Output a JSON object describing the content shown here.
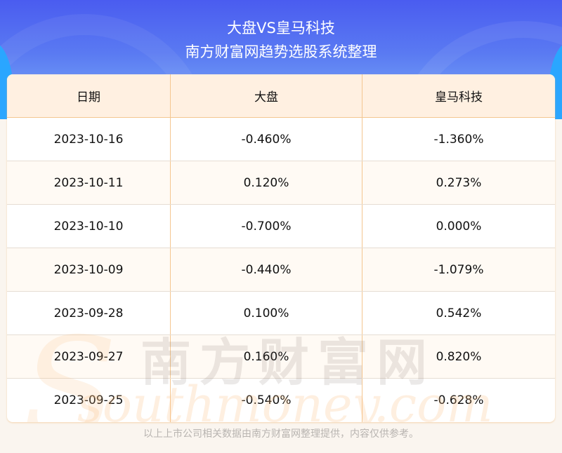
{
  "header": {
    "title": "大盘VS皇马科技",
    "subtitle": "南方财富网趋势选股系统整理"
  },
  "watermark": {
    "cn": "南方财富网",
    "en": "southmoney.com"
  },
  "colors": {
    "header_bg": "#4a5cf0",
    "table_head_bg": "#fff0e1",
    "divider": "#f4c690"
  },
  "table": {
    "columns": [
      "日期",
      "大盘",
      "皇马科技"
    ],
    "rows": [
      [
        "2023-10-16",
        "-0.460%",
        "-1.360%"
      ],
      [
        "2023-10-11",
        "0.120%",
        "0.273%"
      ],
      [
        "2023-10-10",
        "-0.700%",
        "0.000%"
      ],
      [
        "2023-10-09",
        "-0.440%",
        "-1.079%"
      ],
      [
        "2023-09-28",
        "0.100%",
        "0.542%"
      ],
      [
        "2023-09-27",
        "0.160%",
        "0.820%"
      ],
      [
        "2023-09-25",
        "-0.540%",
        "-0.628%"
      ]
    ]
  },
  "chart_data": {
    "type": "table",
    "title": "大盘VS皇马科技",
    "subtitle": "南方财富网趋势选股系统整理",
    "columns": [
      "日期",
      "大盘",
      "皇马科技"
    ],
    "categories": [
      "2023-10-16",
      "2023-10-11",
      "2023-10-10",
      "2023-10-09",
      "2023-09-28",
      "2023-09-27",
      "2023-09-25"
    ],
    "series": [
      {
        "name": "大盘",
        "values": [
          -0.46,
          0.12,
          -0.7,
          -0.44,
          0.1,
          0.16,
          -0.54
        ]
      },
      {
        "name": "皇马科技",
        "values": [
          -1.36,
          0.273,
          0.0,
          -1.079,
          0.542,
          0.82,
          -0.628
        ]
      }
    ]
  },
  "footer": {
    "note": "以上上市公司相关数据由南方财富网整理提供，内容仅供参考。"
  }
}
